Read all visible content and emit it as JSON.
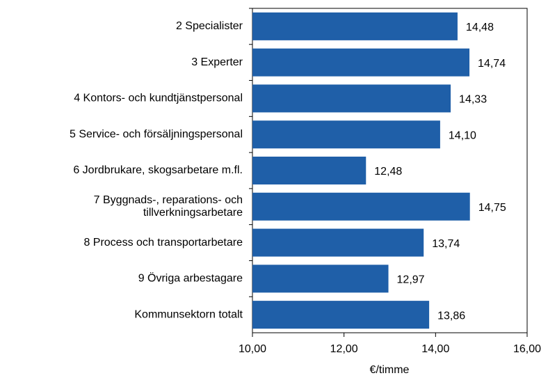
{
  "chart_data": {
    "type": "bar",
    "orientation": "horizontal",
    "categories": [
      "2 Specialister",
      "3 Experter",
      "4 Kontors- och kundtjänstpersonal",
      "5 Service- och försäljningspersonal",
      "6 Jordbrukare, skogsarbetare m.fl.",
      "7 Byggnads-, reparations- och\ntillverkningsarbetare",
      "8 Process och transportarbetare",
      "9 Övriga arbestagare",
      "Kommunsektorn totalt"
    ],
    "values": [
      14.48,
      14.74,
      14.33,
      14.1,
      12.48,
      14.75,
      13.74,
      12.97,
      13.86
    ],
    "value_labels": [
      "14,48",
      "14,74",
      "14,33",
      "14,10",
      "12,48",
      "14,75",
      "13,74",
      "12,97",
      "13,86"
    ],
    "color": "#1f5fa8",
    "xlim": [
      10,
      16
    ],
    "xticks": [
      {
        "value": 10,
        "label": "10,00"
      },
      {
        "value": 12,
        "label": "12,00"
      },
      {
        "value": 14,
        "label": "14,00"
      },
      {
        "value": 16,
        "label": "16,00"
      }
    ],
    "xlabel": "€/timme"
  }
}
